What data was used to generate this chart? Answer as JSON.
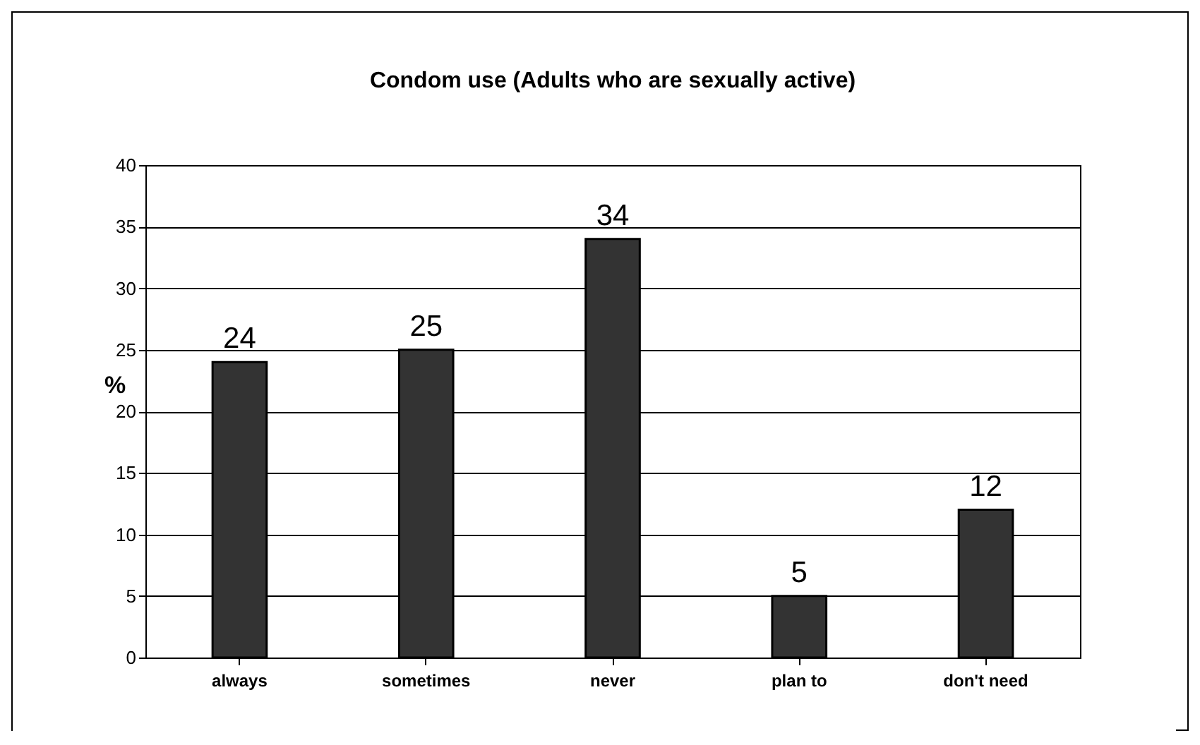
{
  "chart_data": {
    "type": "bar",
    "title": "Condom use (Adults who are sexually active)",
    "ylabel": "%",
    "categories": [
      "always",
      "sometimes",
      "never",
      "plan to",
      "don't need"
    ],
    "values": [
      24,
      25,
      34,
      5,
      12
    ],
    "color": "#333333",
    "ylim": [
      0,
      40
    ],
    "yticks": [
      0,
      5,
      10,
      15,
      20,
      25,
      30,
      35,
      40
    ],
    "grid": "y",
    "data_labels": true
  }
}
